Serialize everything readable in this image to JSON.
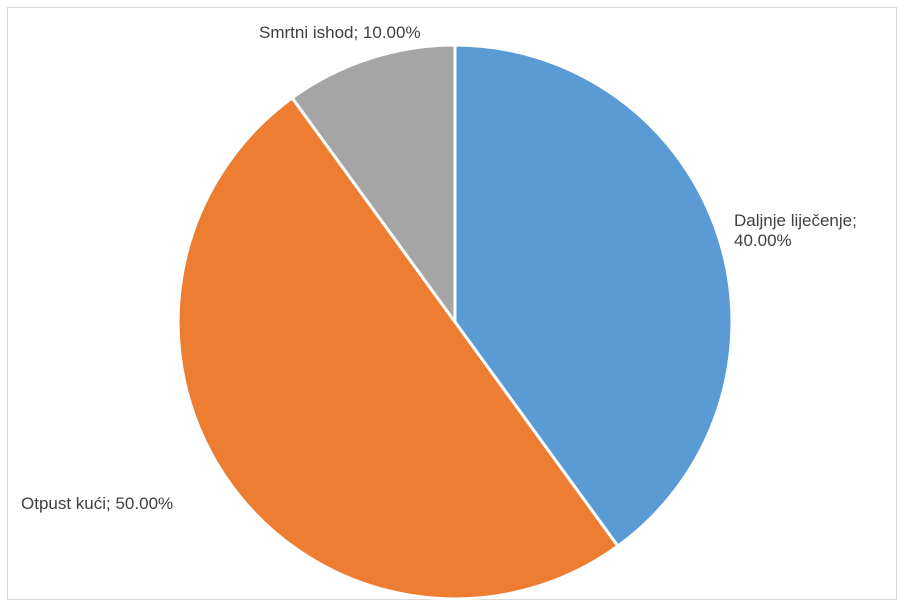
{
  "chart_data": {
    "type": "pie",
    "categories": [
      "Daljnje liječenje",
      "Otpust kući",
      "Smrtni ishod"
    ],
    "values": [
      40.0,
      50.0,
      10.0
    ],
    "colors": [
      "#5b9bd5",
      "#ed7d31",
      "#a5a5a5"
    ],
    "data_labels": {
      "daljnje": {
        "name": "Daljnje liječenje;",
        "value": "40.00%"
      },
      "otpust": {
        "text": "Otpust kući; 50.00%"
      },
      "smrtni": {
        "text": "Smrtni ishod; 10.00%"
      }
    },
    "title": "",
    "legend": "none"
  }
}
